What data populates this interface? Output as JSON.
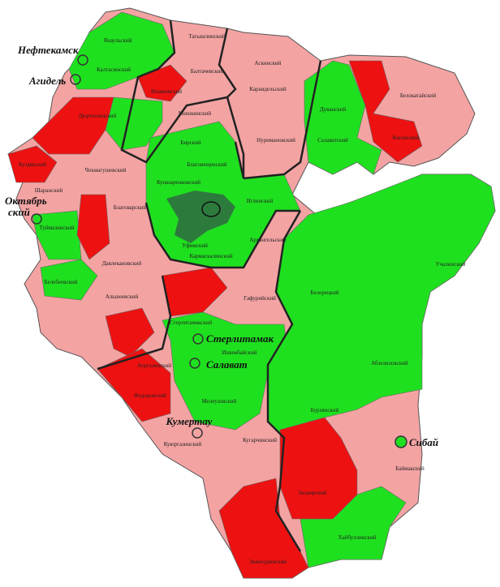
{
  "cities": [
    "Нефтекамск",
    "Агидель",
    "Октябрь",
    "ский",
    "Стерлитамак",
    "Салават",
    "Кумертау",
    "Сибай"
  ],
  "districts": [
    "Янаульский",
    "Татышлинский",
    "Калтасинский",
    "Балтачевский",
    "Аскинский",
    "Караидельский",
    "Илишевский",
    "Мишкинский",
    "Дюртюлинский",
    "Бирский",
    "Дуванский",
    "Салаватский",
    "Белокатайский",
    "Кигинский",
    "Нуримановский",
    "Чекмагушевский",
    "Буздякский",
    "Шаранский",
    "Туймазинский",
    "Благоварский",
    "Благовещенский",
    "Кушнаренковский",
    "Иглинский",
    "Архангельский",
    "Уфимский",
    "Кармаскалинский",
    "Давлекановский",
    "Белебеевский",
    "Альшеевский",
    "Гафурийский",
    "Белорецкий",
    "Учалинский",
    "Стерлитамакский",
    "Ишимбайский",
    "Аургазинский",
    "Федоровский",
    "Мелеузовский",
    "Бурзянский",
    "Абзелиловский",
    "Кугарчинский",
    "Куюргазинский",
    "Баймакский",
    "Зилаирский",
    "Хайбуллинский",
    "Зианчуринский"
  ]
}
